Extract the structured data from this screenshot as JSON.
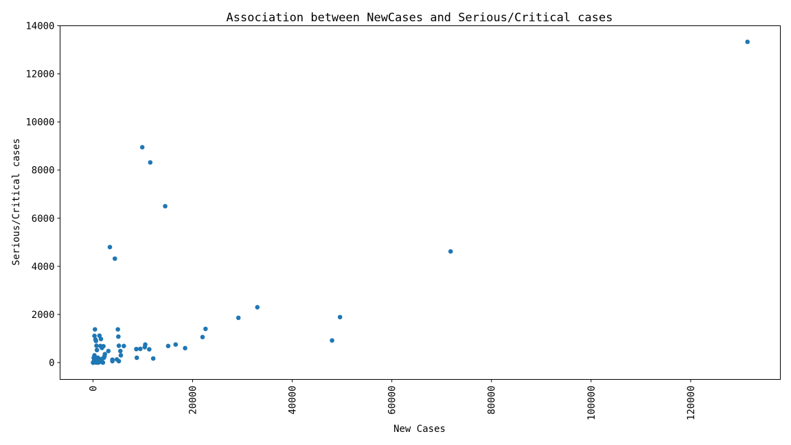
{
  "chart_data": {
    "type": "scatter",
    "title": "Association between NewCases and Serious/Critical cases",
    "xlabel": "New Cases",
    "ylabel": "Serious/Critical cases",
    "xlim": [
      -6600,
      138000
    ],
    "ylim": [
      -700,
      14000
    ],
    "xticks": [
      0,
      20000,
      40000,
      60000,
      80000,
      100000,
      120000
    ],
    "yticks": [
      0,
      2000,
      4000,
      6000,
      8000,
      10000,
      12000,
      14000
    ],
    "grid": false,
    "point_color": "#1f77b4",
    "points": [
      [
        131400,
        13330
      ],
      [
        9900,
        8950
      ],
      [
        11500,
        8320
      ],
      [
        14500,
        6500
      ],
      [
        3400,
        4800
      ],
      [
        4400,
        4320
      ],
      [
        71800,
        4620
      ],
      [
        33000,
        2300
      ],
      [
        29200,
        1860
      ],
      [
        49600,
        1890
      ],
      [
        48000,
        920
      ],
      [
        22600,
        1400
      ],
      [
        22000,
        1060
      ],
      [
        18500,
        600
      ],
      [
        16600,
        750
      ],
      [
        15100,
        690
      ],
      [
        12100,
        170
      ],
      [
        11300,
        550
      ],
      [
        10500,
        750
      ],
      [
        10400,
        640
      ],
      [
        9500,
        570
      ],
      [
        8700,
        560
      ],
      [
        8800,
        200
      ],
      [
        6200,
        690
      ],
      [
        5600,
        300
      ],
      [
        5500,
        480
      ],
      [
        5200,
        700
      ],
      [
        5100,
        1080
      ],
      [
        5000,
        1380
      ],
      [
        5200,
        60
      ],
      [
        4800,
        130
      ],
      [
        3900,
        60
      ],
      [
        3900,
        120
      ],
      [
        3100,
        480
      ],
      [
        2400,
        350
      ],
      [
        2300,
        250
      ],
      [
        2200,
        200
      ],
      [
        2100,
        680
      ],
      [
        1800,
        610
      ],
      [
        1600,
        980
      ],
      [
        1500,
        690
      ],
      [
        1300,
        1120
      ],
      [
        1200,
        150
      ],
      [
        1000,
        200
      ],
      [
        900,
        70
      ],
      [
        800,
        520
      ],
      [
        700,
        700
      ],
      [
        600,
        900
      ],
      [
        500,
        960
      ],
      [
        400,
        1380
      ],
      [
        300,
        1110
      ],
      [
        300,
        300
      ],
      [
        250,
        100
      ],
      [
        200,
        40
      ],
      [
        150,
        200
      ],
      [
        100,
        0
      ],
      [
        80,
        10
      ],
      [
        60,
        5
      ],
      [
        40,
        0
      ],
      [
        20,
        0
      ],
      [
        700,
        0
      ],
      [
        1400,
        120
      ],
      [
        1600,
        40
      ],
      [
        1100,
        0
      ],
      [
        2000,
        0
      ],
      [
        400,
        20
      ],
      [
        300,
        60
      ],
      [
        1800,
        150
      ],
      [
        600,
        150
      ],
      [
        950,
        110
      ],
      [
        1250,
        60
      ]
    ]
  }
}
